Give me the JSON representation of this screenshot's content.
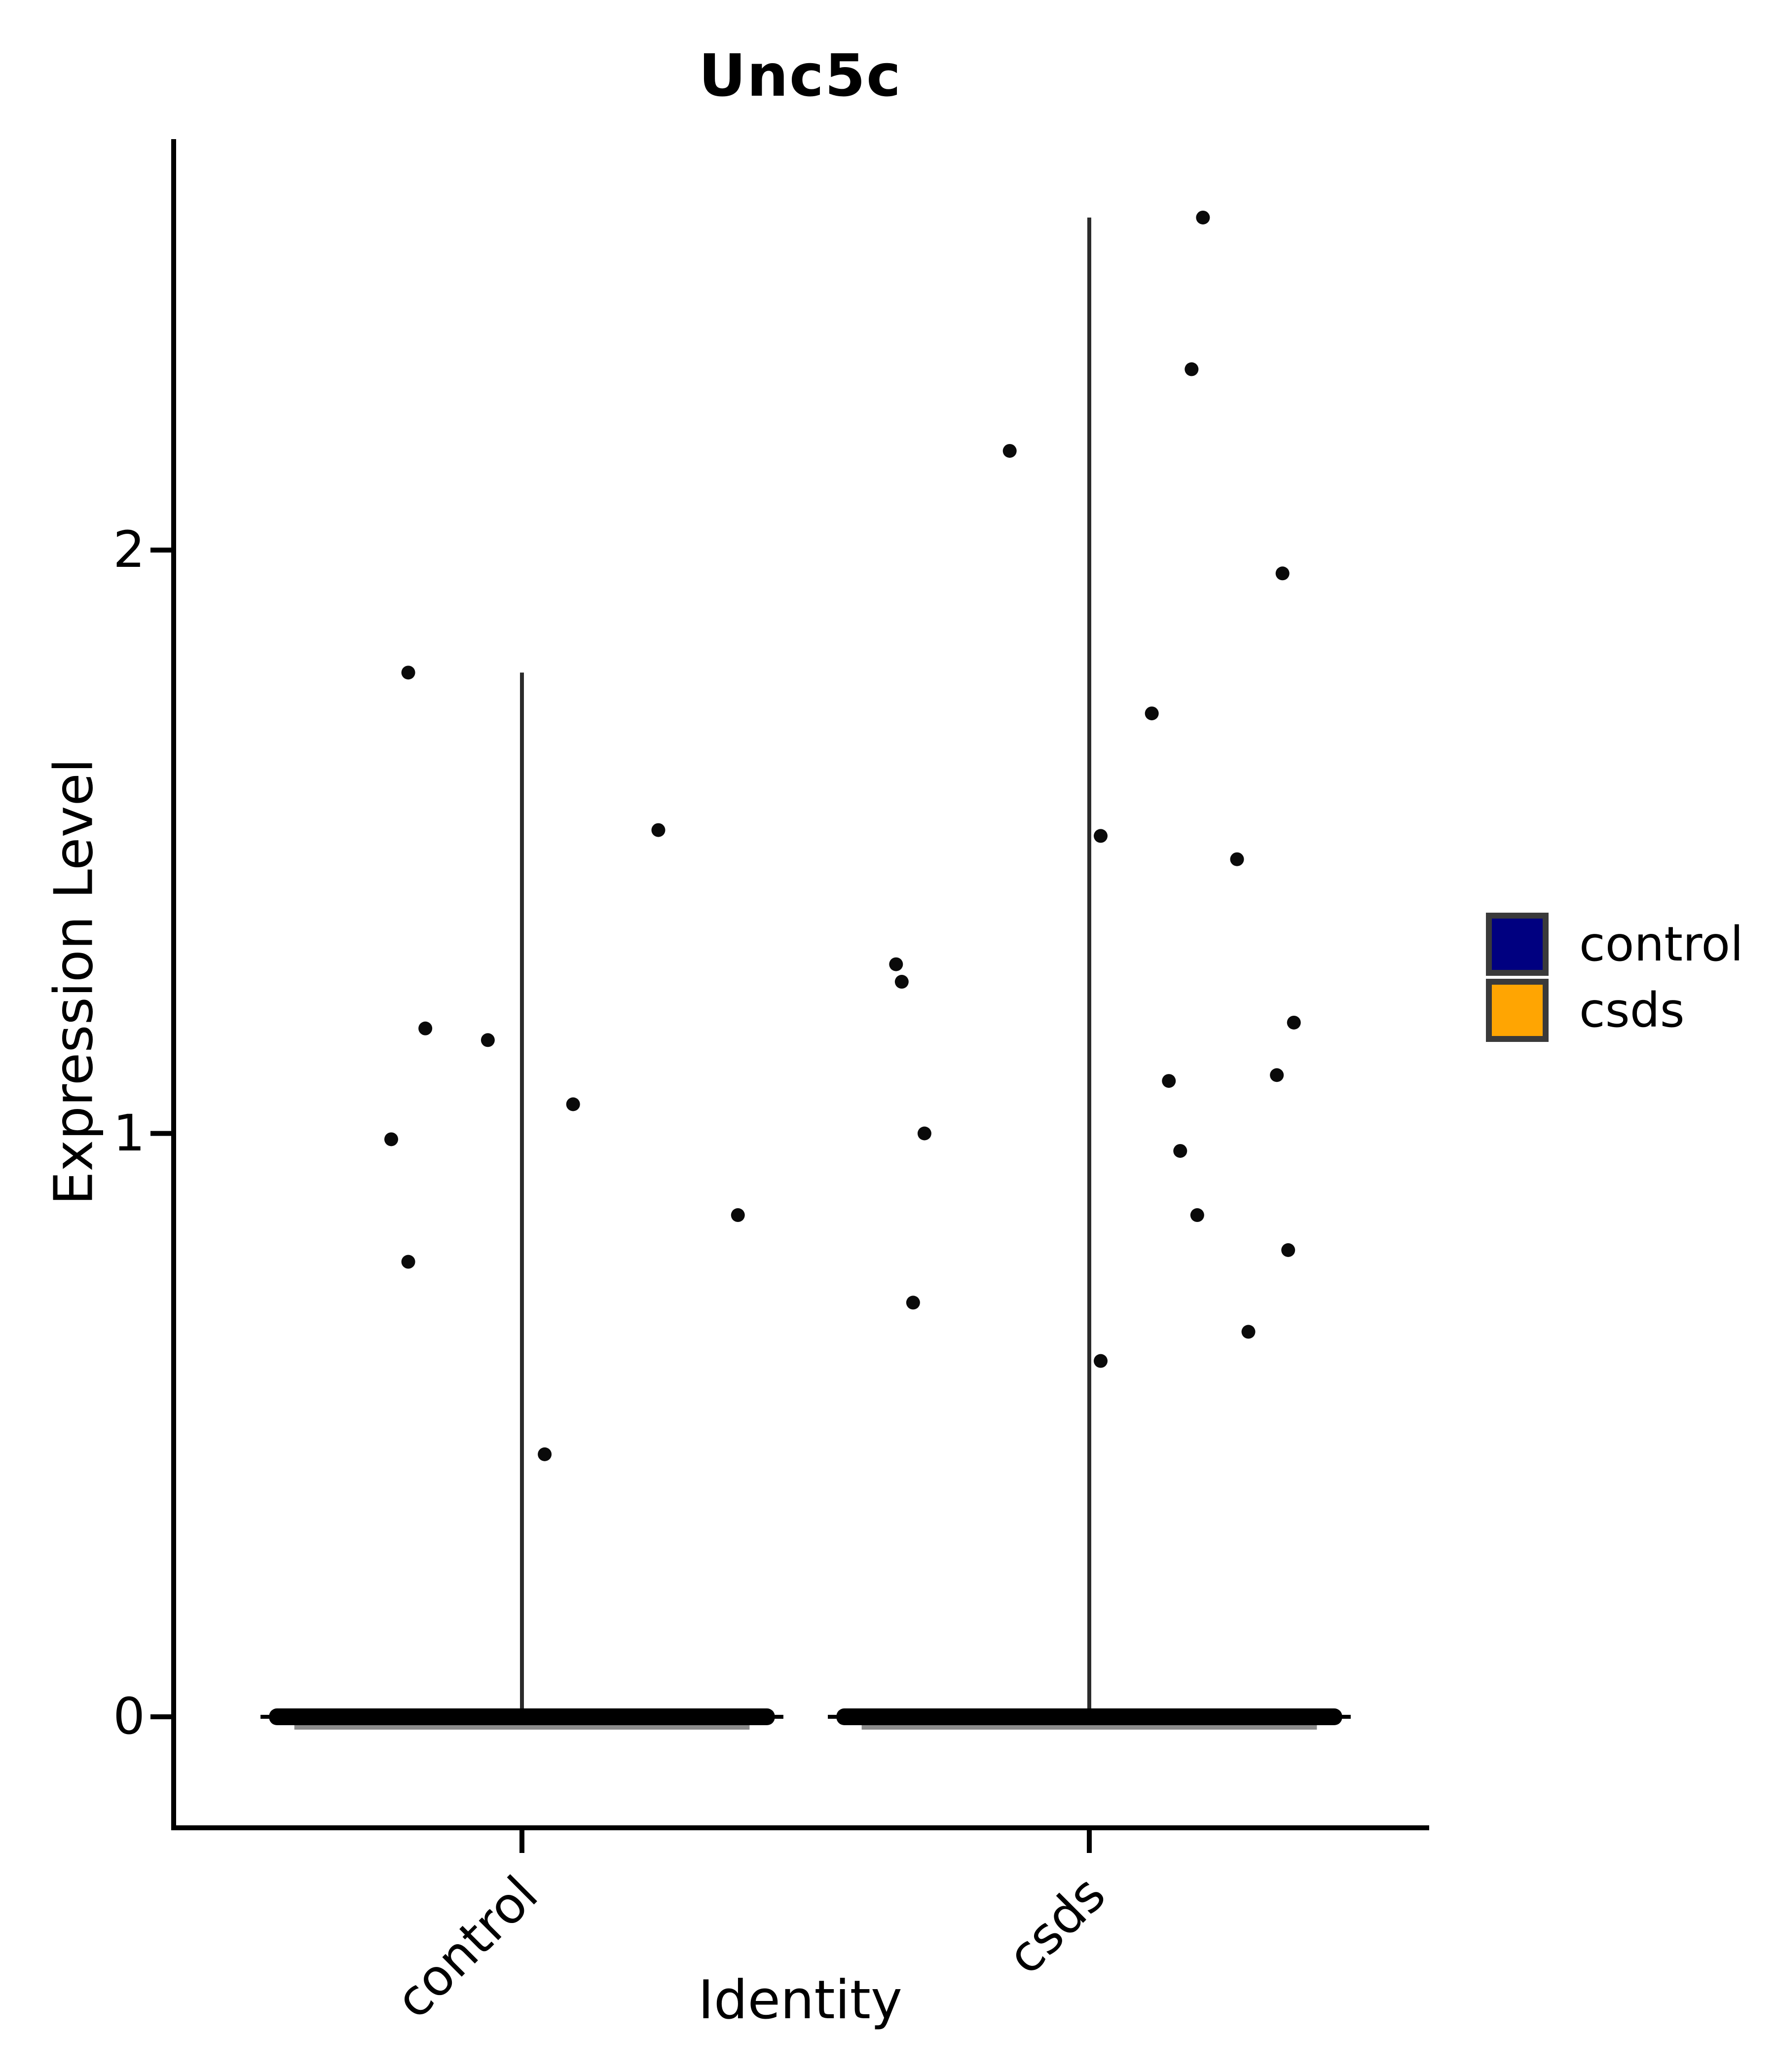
{
  "figure": {
    "title": "Unc5c",
    "x_axis_label": "Identity",
    "y_axis_label": "Expression Level"
  },
  "axes": {
    "y": {
      "ticks": [
        {
          "label": "2",
          "value": 2
        },
        {
          "label": "1",
          "value": 1
        },
        {
          "label": "0",
          "value": 0
        }
      ]
    },
    "x": {
      "ticks": [
        {
          "label": "control"
        },
        {
          "label": "csds"
        }
      ]
    }
  },
  "legend": {
    "entries": [
      {
        "label": "control",
        "color": "#000080"
      },
      {
        "label": "csds",
        "color": "#FFA502"
      }
    ],
    "swatch_border_color": "#3A3A3A"
  },
  "chart_data": {
    "type": "scatter",
    "subtype": "violin_jitter",
    "title": "Unc5c",
    "xlabel": "Identity",
    "ylabel": "Expression Level",
    "categories": [
      "control",
      "csds"
    ],
    "yticks": [
      0,
      1,
      2
    ],
    "ylim": [
      -0.2,
      2.7
    ],
    "grid": false,
    "legend_position": "right-center",
    "point_color": "#0a0a0a",
    "series": [
      {
        "name": "control",
        "color": "#000080",
        "stem_top": 1.79,
        "zero_band": {
          "value": 0,
          "halfwidth": 0.445,
          "cap_halfwidth": 0.46,
          "description": "dense overplotted jitter points at expression 0"
        },
        "points": [
          {
            "dx": -0.2,
            "y": 1.79
          },
          {
            "dx": 0.24,
            "y": 1.52
          },
          {
            "dx": -0.17,
            "y": 1.18
          },
          {
            "dx": -0.06,
            "y": 1.16
          },
          {
            "dx": 0.09,
            "y": 1.05
          },
          {
            "dx": -0.23,
            "y": 0.99
          },
          {
            "dx": 0.38,
            "y": 0.86
          },
          {
            "dx": -0.2,
            "y": 0.78
          },
          {
            "dx": 0.04,
            "y": 0.45
          }
        ]
      },
      {
        "name": "csds",
        "color": "#FFA502",
        "stem_top": 2.57,
        "zero_band": {
          "value": 0,
          "halfwidth": 0.445,
          "cap_halfwidth": 0.46,
          "description": "dense overplotted jitter points at expression 0"
        },
        "points": [
          {
            "dx": 0.2,
            "y": 2.57
          },
          {
            "dx": 0.18,
            "y": 2.31
          },
          {
            "dx": -0.14,
            "y": 2.17
          },
          {
            "dx": 0.34,
            "y": 1.96
          },
          {
            "dx": 0.11,
            "y": 1.72
          },
          {
            "dx": 0.02,
            "y": 1.51
          },
          {
            "dx": 0.26,
            "y": 1.47
          },
          {
            "dx": -0.34,
            "y": 1.29
          },
          {
            "dx": -0.33,
            "y": 1.26
          },
          {
            "dx": 0.36,
            "y": 1.19
          },
          {
            "dx": 0.33,
            "y": 1.1
          },
          {
            "dx": 0.14,
            "y": 1.09
          },
          {
            "dx": -0.29,
            "y": 1.0
          },
          {
            "dx": 0.16,
            "y": 0.97
          },
          {
            "dx": 0.19,
            "y": 0.86
          },
          {
            "dx": 0.35,
            "y": 0.8
          },
          {
            "dx": -0.31,
            "y": 0.71
          },
          {
            "dx": 0.28,
            "y": 0.66
          },
          {
            "dx": 0.02,
            "y": 0.61
          }
        ]
      }
    ]
  }
}
